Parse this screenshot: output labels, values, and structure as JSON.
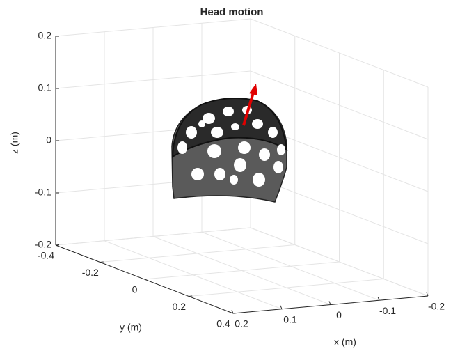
{
  "chart_data": {
    "type": "surface3d",
    "title": "Head motion",
    "xlabel": "x (m)",
    "ylabel": "y (m)",
    "zlabel": "z (m)",
    "xlim": [
      -0.2,
      0.2
    ],
    "ylim": [
      -0.4,
      0.4
    ],
    "zlim": [
      -0.2,
      0.2
    ],
    "xticks": [
      0.2,
      0.1,
      0,
      -0.1,
      -0.2
    ],
    "yticks": [
      -0.4,
      -0.2,
      0,
      0.2,
      0.4
    ],
    "zticks": [
      -0.2,
      -0.1,
      0,
      0.1,
      0.2
    ],
    "grid": true
  }
}
